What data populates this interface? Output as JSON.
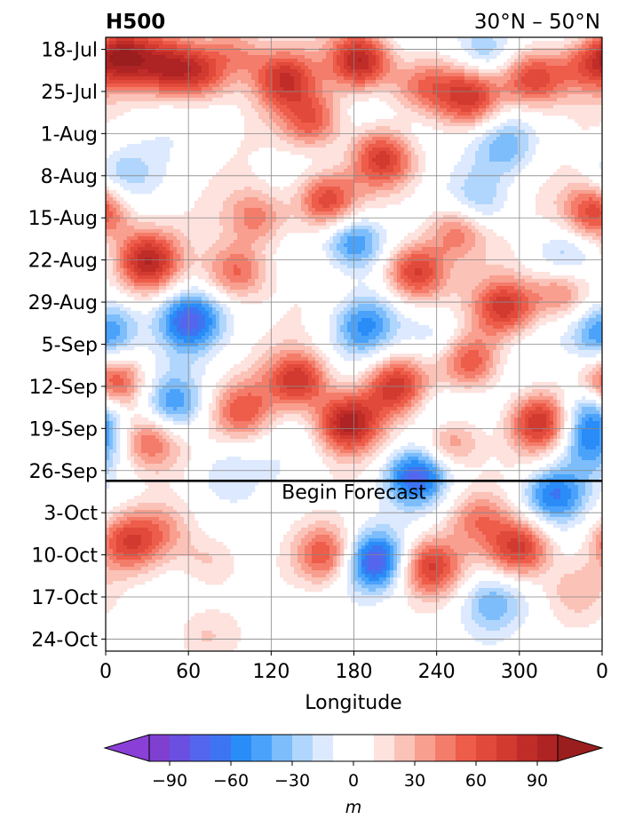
{
  "chart_data": {
    "type": "heatmap",
    "title_left": "H500",
    "title_right": "30°N – 50°N",
    "xlabel": "Longitude",
    "ylabel": "",
    "x_ticks": [
      "0",
      "60",
      "120",
      "180",
      "240",
      "300",
      "0"
    ],
    "x_tick_values": [
      0,
      60,
      120,
      180,
      240,
      300,
      360
    ],
    "xlim": [
      0,
      360
    ],
    "y_ticks": [
      "18-Jul",
      "25-Jul",
      "1-Aug",
      "8-Aug",
      "15-Aug",
      "22-Aug",
      "29-Aug",
      "5-Sep",
      "12-Sep",
      "19-Sep",
      "26-Sep",
      "3-Oct",
      "10-Oct",
      "17-Oct",
      "24-Oct"
    ],
    "y_tick_days": [
      0,
      7,
      14,
      21,
      28,
      35,
      42,
      49,
      56,
      63,
      70,
      77,
      84,
      91,
      98
    ],
    "ylim_days": [
      -2,
      100
    ],
    "y_inverted": true,
    "grid": true,
    "forecast_line": {
      "day": 71.7,
      "label": "Begin Forecast"
    },
    "colorbar": {
      "unit": "m",
      "levels": [
        -100,
        -90,
        -80,
        -70,
        -60,
        -50,
        -40,
        -30,
        -20,
        -10,
        10,
        20,
        30,
        40,
        50,
        60,
        70,
        80,
        90,
        100
      ],
      "colors": [
        "#7f3fd0",
        "#6a4fe0",
        "#5566ee",
        "#3d74f2",
        "#2a8cf7",
        "#4aa2fa",
        "#7dbdfb",
        "#b0d6fd",
        "#dde9fe",
        "#ffffff",
        "#fde2de",
        "#fbc2b8",
        "#f99f8f",
        "#f47c6a",
        "#ee5c4a",
        "#e14a3b",
        "#d23a30",
        "#c02c28",
        "#ae2323"
      ],
      "extend": "both",
      "under_color": "#8a3fd6",
      "over_color": "#9a1e1e",
      "tick_labels": [
        "−90",
        "−60",
        "−30",
        "0",
        "30",
        "60",
        "90"
      ],
      "tick_values": [
        -90,
        -60,
        -30,
        0,
        30,
        60,
        90
      ]
    },
    "anomaly_features_m": [
      {
        "lon": 12,
        "day": 1,
        "value": 85
      },
      {
        "lon": 45,
        "day": 3,
        "value": 70
      },
      {
        "lon": 70,
        "day": 4,
        "value": 60
      },
      {
        "lon": 95,
        "day": 0,
        "value": 40
      },
      {
        "lon": 130,
        "day": 5,
        "value": 70
      },
      {
        "lon": 150,
        "day": 12,
        "value": 60
      },
      {
        "lon": 185,
        "day": 2,
        "value": 95
      },
      {
        "lon": 200,
        "day": 18,
        "value": 70
      },
      {
        "lon": 230,
        "day": 6,
        "value": 45
      },
      {
        "lon": 265,
        "day": 8,
        "value": 70
      },
      {
        "lon": 310,
        "day": 5,
        "value": 75
      },
      {
        "lon": 345,
        "day": 3,
        "value": 45
      },
      {
        "lon": 275,
        "day": 0,
        "value": -40
      },
      {
        "lon": 225,
        "day": 14,
        "value": -15
      },
      {
        "lon": 290,
        "day": 16,
        "value": -30
      },
      {
        "lon": 10,
        "day": 21,
        "value": -25
      },
      {
        "lon": 270,
        "day": 26,
        "value": -30
      },
      {
        "lon": 180,
        "day": 32,
        "value": -60
      },
      {
        "lon": 30,
        "day": 35,
        "value": 85
      },
      {
        "lon": 95,
        "day": 37,
        "value": 60
      },
      {
        "lon": 110,
        "day": 28,
        "value": 50
      },
      {
        "lon": 160,
        "day": 25,
        "value": 70
      },
      {
        "lon": 225,
        "day": 37,
        "value": 80
      },
      {
        "lon": 255,
        "day": 30,
        "value": 55
      },
      {
        "lon": 290,
        "day": 43,
        "value": 75
      },
      {
        "lon": 330,
        "day": 40,
        "value": 55
      },
      {
        "lon": 355,
        "day": 27,
        "value": 75
      },
      {
        "lon": 330,
        "day": 35,
        "value": -30
      },
      {
        "lon": 60,
        "day": 45,
        "value": -70
      },
      {
        "lon": 5,
        "day": 46,
        "value": -40
      },
      {
        "lon": 188,
        "day": 46,
        "value": -45
      },
      {
        "lon": 240,
        "day": 48,
        "value": -25
      },
      {
        "lon": 355,
        "day": 49,
        "value": -30
      },
      {
        "lon": 140,
        "day": 55,
        "value": 80
      },
      {
        "lon": 175,
        "day": 62,
        "value": 95
      },
      {
        "lon": 210,
        "day": 56,
        "value": 70
      },
      {
        "lon": 5,
        "day": 56,
        "value": 80
      },
      {
        "lon": 30,
        "day": 65,
        "value": 60
      },
      {
        "lon": 100,
        "day": 60,
        "value": 50
      },
      {
        "lon": 250,
        "day": 65,
        "value": 55
      },
      {
        "lon": 315,
        "day": 62,
        "value": 75
      },
      {
        "lon": 265,
        "day": 52,
        "value": 60
      },
      {
        "lon": 50,
        "day": 59,
        "value": -45
      },
      {
        "lon": 240,
        "day": 61,
        "value": -25
      },
      {
        "lon": 353,
        "day": 59,
        "value": -60
      },
      {
        "lon": 350,
        "day": 65,
        "value": -50
      },
      {
        "lon": 225,
        "day": 71,
        "value": -70
      },
      {
        "lon": 85,
        "day": 70,
        "value": -20
      },
      {
        "lon": 15,
        "day": 82,
        "value": 60
      },
      {
        "lon": 75,
        "day": 85,
        "value": 25
      },
      {
        "lon": 160,
        "day": 84,
        "value": 60
      },
      {
        "lon": 195,
        "day": 85,
        "value": -80
      },
      {
        "lon": 235,
        "day": 86,
        "value": 70
      },
      {
        "lon": 270,
        "day": 78,
        "value": 40
      },
      {
        "lon": 300,
        "day": 83,
        "value": 75
      },
      {
        "lon": 325,
        "day": 74,
        "value": -60
      },
      {
        "lon": 280,
        "day": 92,
        "value": -35
      },
      {
        "lon": 340,
        "day": 90,
        "value": 25
      },
      {
        "lon": 70,
        "day": 97,
        "value": 20
      },
      {
        "lon": 40,
        "day": 80,
        "value": 30
      }
    ]
  }
}
